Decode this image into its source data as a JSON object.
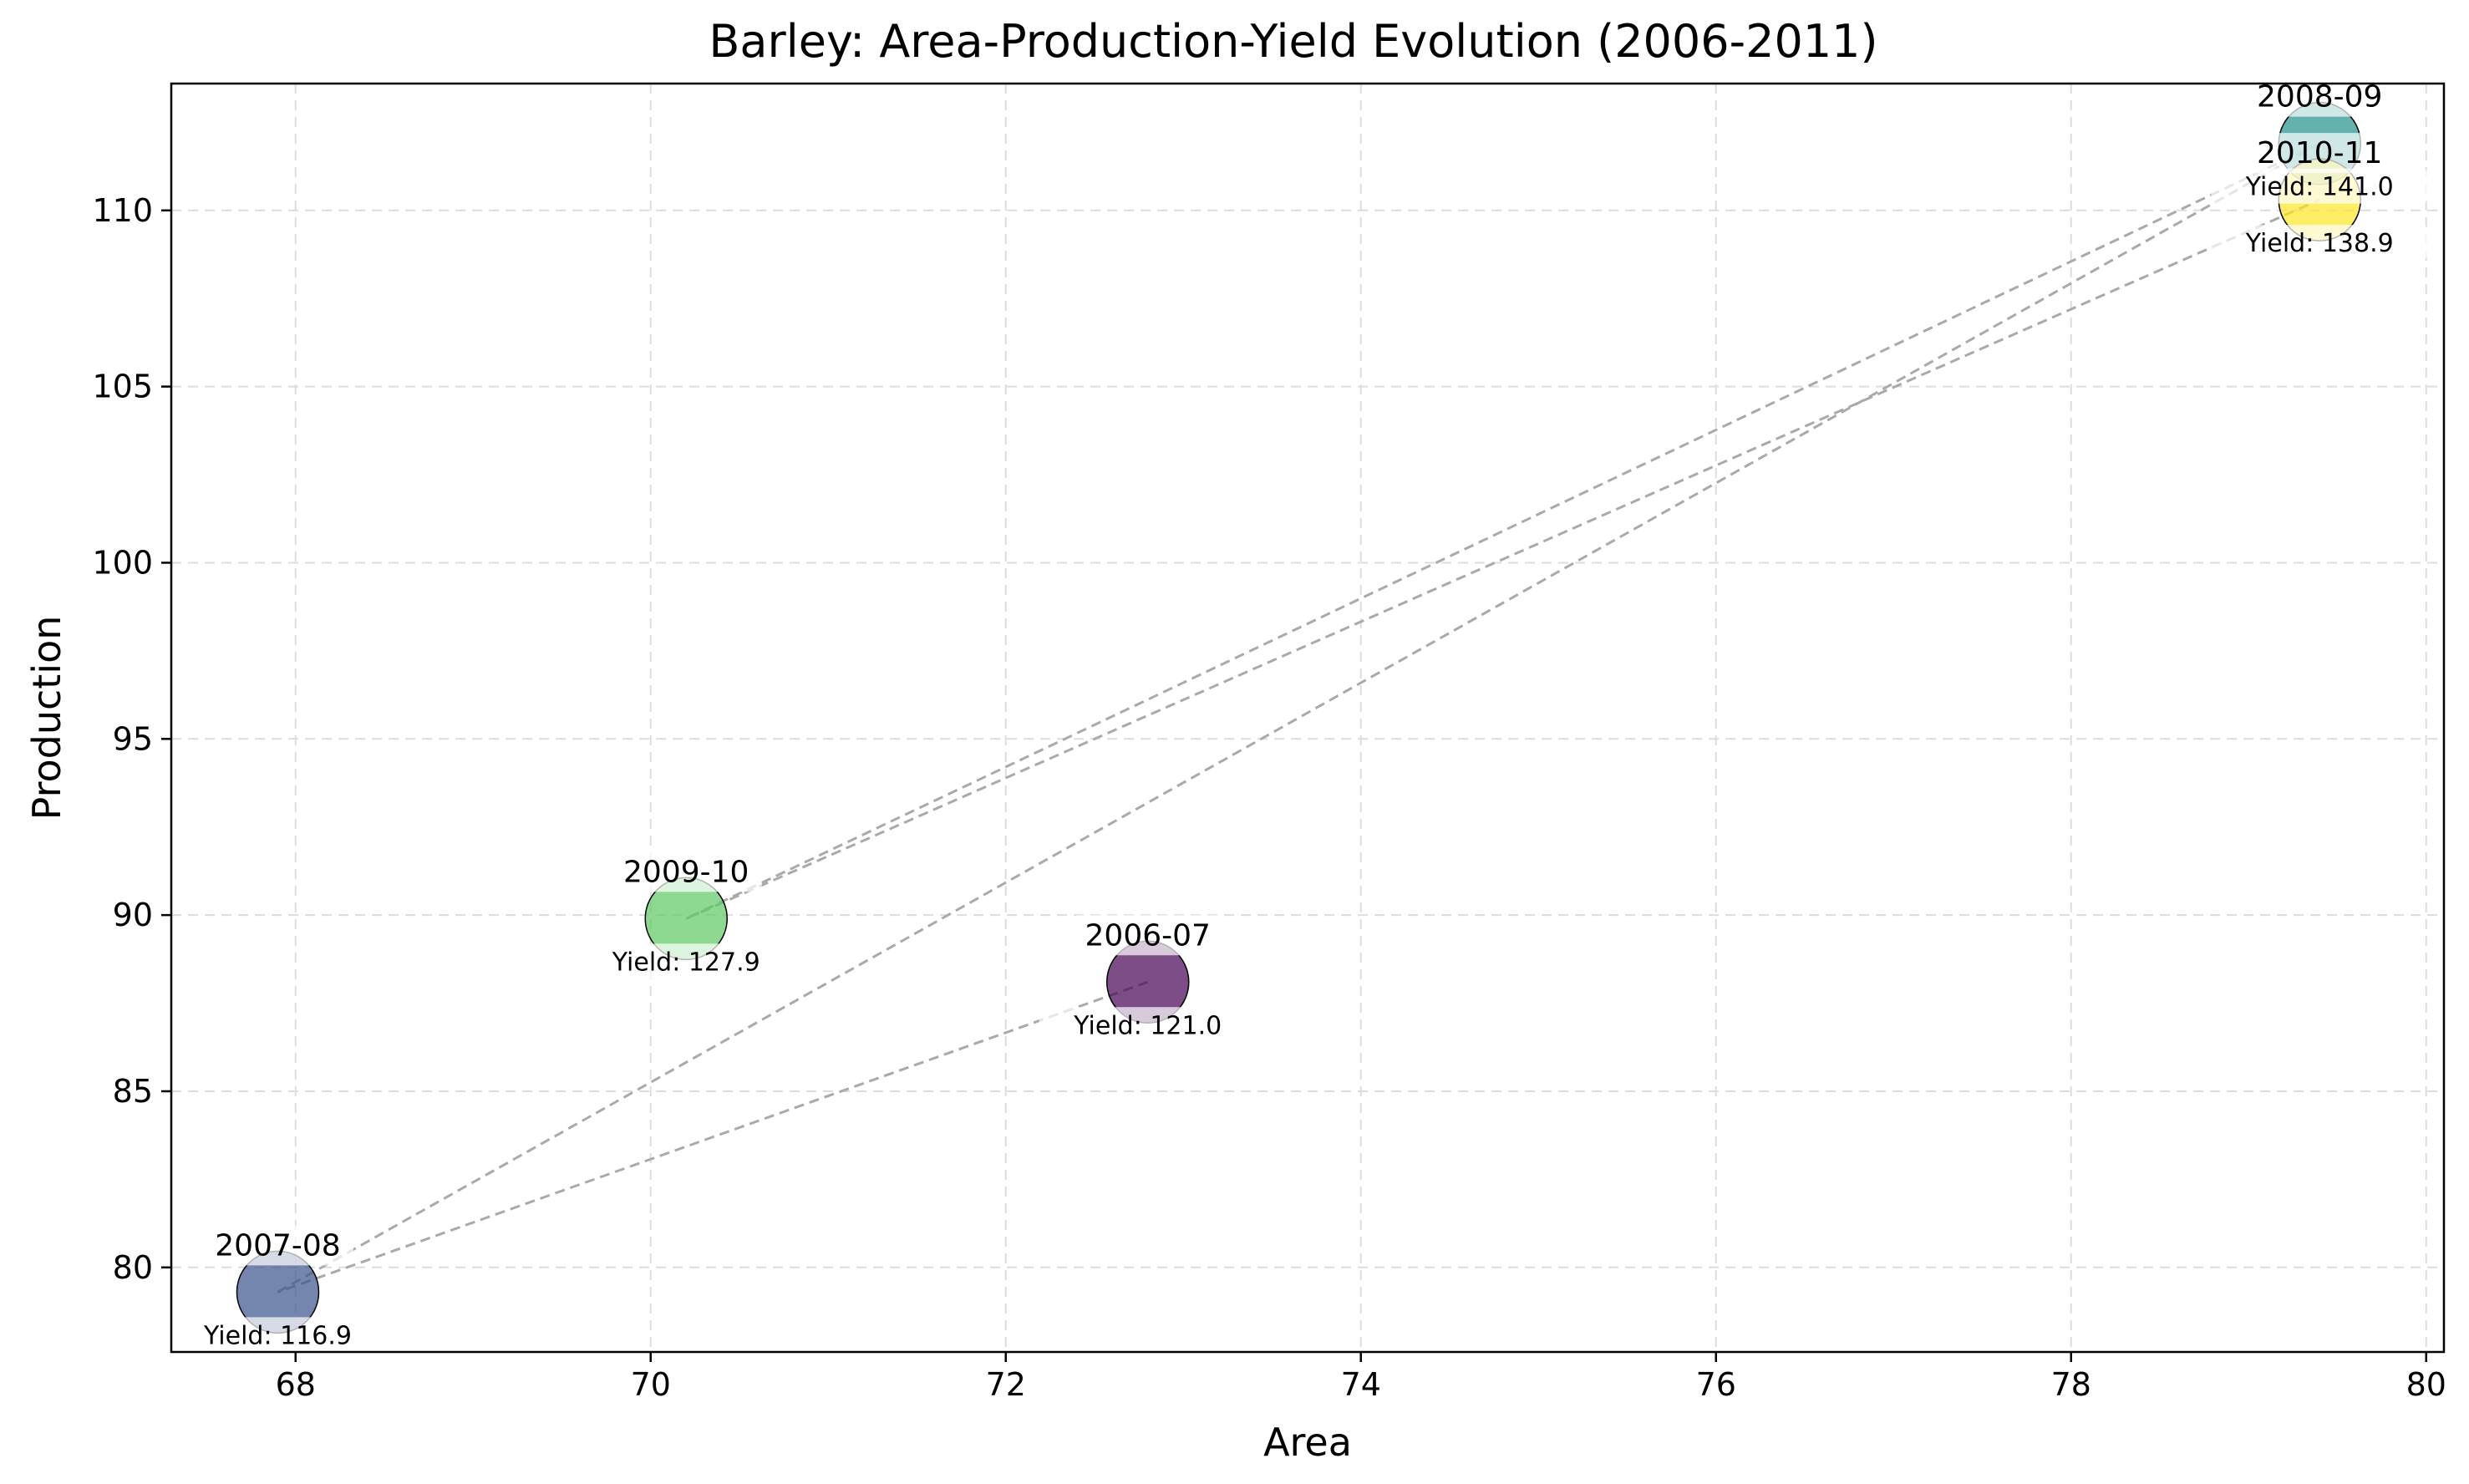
{
  "chart_data": {
    "type": "scatter",
    "title": "Barley: Area-Production-Yield Evolution (2006-2011)",
    "xlabel": "Area",
    "ylabel": "Production",
    "xlim": [
      67.3,
      80.1
    ],
    "ylim": [
      77.6,
      113.6
    ],
    "xticks": [
      68,
      70,
      72,
      74,
      76,
      78,
      80
    ],
    "yticks": [
      80,
      85,
      90,
      95,
      100,
      105,
      110
    ],
    "grid": true,
    "points": [
      {
        "label": "2006-07",
        "x": 72.8,
        "y": 88.1,
        "yield_label": "Yield: 121.0",
        "color": "#440154"
      },
      {
        "label": "2007-08",
        "x": 67.9,
        "y": 79.3,
        "yield_label": "Yield: 116.9",
        "color": "#3b528b"
      },
      {
        "label": "2008-09",
        "x": 79.4,
        "y": 111.9,
        "yield_label": "Yield: 141.0",
        "color": "#21918c"
      },
      {
        "label": "2009-10",
        "x": 70.2,
        "y": 89.9,
        "yield_label": "Yield: 127.9",
        "color": "#5ec962"
      },
      {
        "label": "2010-11",
        "x": 79.4,
        "y": 110.3,
        "yield_label": "Yield: 138.9",
        "color": "#fde725"
      }
    ],
    "path_order": [
      "2006-07",
      "2007-08",
      "2008-09",
      "2009-10",
      "2010-11"
    ],
    "path_color": "#aaaaaa"
  }
}
